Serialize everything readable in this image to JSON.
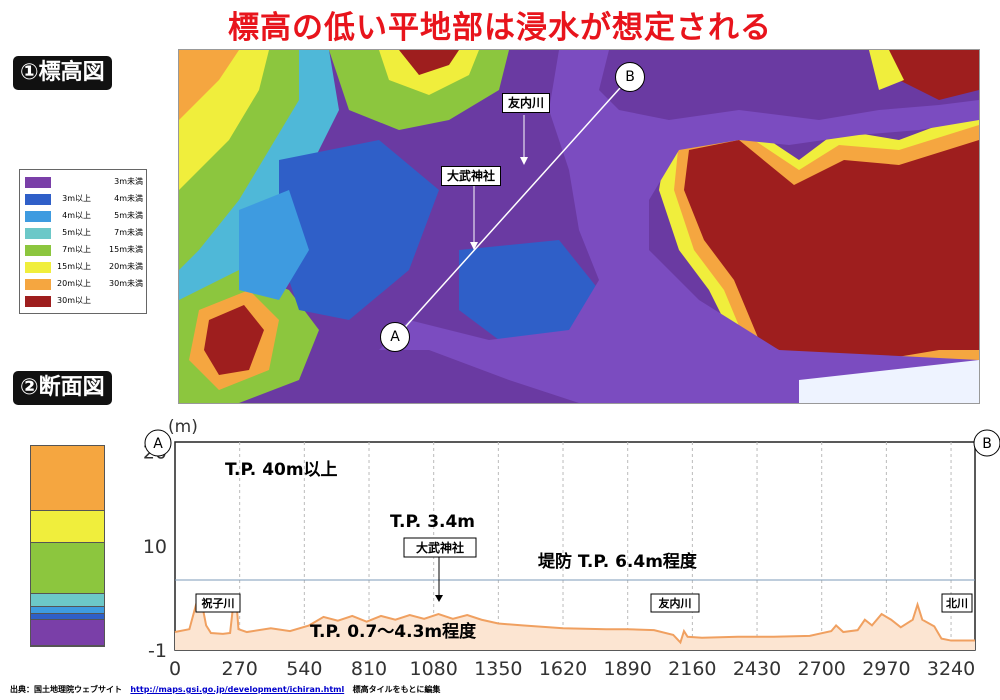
{
  "title": "標高の低い平地部は浸水が想定される",
  "sections": {
    "elevation": "①標高図",
    "profile": "②断面図"
  },
  "legend": [
    {
      "lo": "",
      "hi": "3m未満",
      "color": "#7a3fa8"
    },
    {
      "lo": "3m以上",
      "hi": "4m未満",
      "color": "#2f5fc8"
    },
    {
      "lo": "4m以上",
      "hi": "5m未満",
      "color": "#3e9be0"
    },
    {
      "lo": "5m以上",
      "hi": "7m未満",
      "color": "#6cc8c8"
    },
    {
      "lo": "7m以上",
      "hi": "15m未満",
      "color": "#8cc63e"
    },
    {
      "lo": "15m以上",
      "hi": "20m未満",
      "color": "#f0ee3c"
    },
    {
      "lo": "20m以上",
      "hi": "30m未満",
      "color": "#f5a640"
    },
    {
      "lo": "30m以上",
      "hi": "",
      "color": "#9e1e1e"
    }
  ],
  "map_labels": {
    "river": "友内川",
    "shrine": "大武神社",
    "point_a": "A",
    "point_b": "B"
  },
  "chart_data": {
    "type": "area",
    "ylabel": "(m)",
    "xlim": [
      0,
      3340
    ],
    "ylim": [
      -1,
      21
    ],
    "x_ticks": [
      0,
      270,
      540,
      810,
      1080,
      1350,
      1620,
      1890,
      2160,
      2430,
      2700,
      2970,
      3240
    ],
    "y_ticks": [
      20,
      10,
      -1
    ],
    "levee_level": 6.4,
    "profile": [
      [
        0,
        0.9
      ],
      [
        60,
        1.2
      ],
      [
        90,
        4.0
      ],
      [
        110,
        4.2
      ],
      [
        130,
        1.6
      ],
      [
        150,
        0.8
      ],
      [
        200,
        0.7
      ],
      [
        230,
        0.8
      ],
      [
        245,
        4.2
      ],
      [
        255,
        4.6
      ],
      [
        265,
        1.2
      ],
      [
        300,
        0.9
      ],
      [
        400,
        1.3
      ],
      [
        480,
        1.0
      ],
      [
        560,
        1.6
      ],
      [
        620,
        2.5
      ],
      [
        680,
        2.1
      ],
      [
        740,
        2.6
      ],
      [
        800,
        2.0
      ],
      [
        860,
        2.6
      ],
      [
        920,
        2.2
      ],
      [
        980,
        2.7
      ],
      [
        1040,
        2.3
      ],
      [
        1100,
        2.8
      ],
      [
        1160,
        2.3
      ],
      [
        1220,
        2.7
      ],
      [
        1280,
        2.2
      ],
      [
        1350,
        1.8
      ],
      [
        1450,
        1.6
      ],
      [
        1620,
        1.3
      ],
      [
        1800,
        1.2
      ],
      [
        1890,
        1.2
      ],
      [
        2000,
        1.1
      ],
      [
        2080,
        0.6
      ],
      [
        2110,
        -0.2
      ],
      [
        2125,
        1.0
      ],
      [
        2140,
        0.4
      ],
      [
        2200,
        0.3
      ],
      [
        2350,
        0.4
      ],
      [
        2500,
        0.4
      ],
      [
        2650,
        0.5
      ],
      [
        2740,
        1.0
      ],
      [
        2760,
        1.6
      ],
      [
        2790,
        0.9
      ],
      [
        2850,
        1.1
      ],
      [
        2880,
        2.2
      ],
      [
        2910,
        1.6
      ],
      [
        2950,
        2.8
      ],
      [
        2990,
        2.2
      ],
      [
        3030,
        1.4
      ],
      [
        3080,
        2.2
      ],
      [
        3100,
        3.8
      ],
      [
        3120,
        2.2
      ],
      [
        3170,
        1.5
      ],
      [
        3200,
        0.2
      ],
      [
        3240,
        0.0
      ],
      [
        3300,
        0.0
      ],
      [
        3340,
        0.0
      ]
    ],
    "annotations": {
      "tp_high": "T.P.  40m以上",
      "tp_shrine": "T.P.  3.4m",
      "shrine": "大武神社",
      "levee": "堤防 T.P.  6.4m程度",
      "plain": "T.P.  0.7～4.3m程度",
      "river_left": "祝子川",
      "river_mid": "友内川",
      "river_right": "北川",
      "end_a": "A",
      "end_b": "B"
    }
  },
  "profile_strip": [
    {
      "color": "#f5a640",
      "from": 30,
      "to": 20
    },
    {
      "color": "#f0ee3c",
      "from": 20,
      "to": 15
    },
    {
      "color": "#8cc63e",
      "from": 15,
      "to": 7
    },
    {
      "color": "#6cc8c8",
      "from": 7,
      "to": 5
    },
    {
      "color": "#3e9be0",
      "from": 5,
      "to": 4
    },
    {
      "color": "#2f5fc8",
      "from": 4,
      "to": 3
    },
    {
      "color": "#7a3fa8",
      "from": 3,
      "to": -1
    }
  ],
  "footer": {
    "prefix": "出典：国土地理院ウェブサイト",
    "url": "http://maps.gsi.go.jp/development/ichiran.html",
    "suffix": "標高タイルをもとに編集"
  }
}
